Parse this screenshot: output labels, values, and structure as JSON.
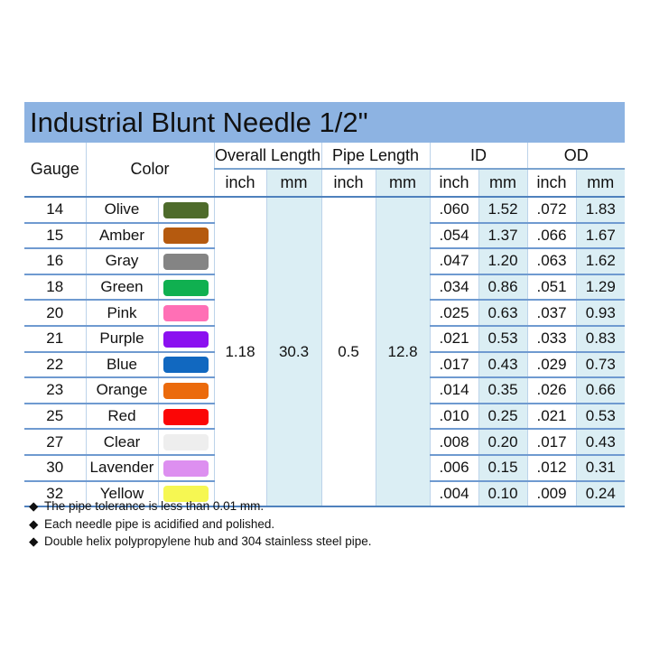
{
  "title": "Industrial Blunt Needle 1/2\"",
  "headers": {
    "gauge": "Gauge",
    "color": "Color",
    "overall_length": "Overall Length",
    "pipe_length": "Pipe Length",
    "id": "ID",
    "od": "OD",
    "inch": "inch",
    "mm": "mm"
  },
  "overall_length": {
    "inch": "1.18",
    "mm": "30.3"
  },
  "pipe_length": {
    "inch": "0.5",
    "mm": "12.8"
  },
  "rows": [
    {
      "gauge": "14",
      "color": "Olive",
      "hex": "#4e6b2b",
      "id_inch": ".060",
      "id_mm": "1.52",
      "od_inch": ".072",
      "od_mm": "1.83"
    },
    {
      "gauge": "15",
      "color": "Amber",
      "hex": "#b55a0f",
      "id_inch": ".054",
      "id_mm": "1.37",
      "od_inch": ".066",
      "od_mm": "1.67"
    },
    {
      "gauge": "16",
      "color": "Gray",
      "hex": "#848484",
      "id_inch": ".047",
      "id_mm": "1.20",
      "od_inch": ".063",
      "od_mm": "1.62"
    },
    {
      "gauge": "18",
      "color": "Green",
      "hex": "#10b050",
      "id_inch": ".034",
      "id_mm": "0.86",
      "od_inch": ".051",
      "od_mm": "1.29"
    },
    {
      "gauge": "20",
      "color": "Pink",
      "hex": "#ff6fb5",
      "id_inch": ".025",
      "id_mm": "0.63",
      "od_inch": ".037",
      "od_mm": "0.93"
    },
    {
      "gauge": "21",
      "color": "Purple",
      "hex": "#8b10f0",
      "id_inch": ".021",
      "id_mm": "0.53",
      "od_inch": ".033",
      "od_mm": "0.83"
    },
    {
      "gauge": "22",
      "color": "Blue",
      "hex": "#1168c0",
      "id_inch": ".017",
      "id_mm": "0.43",
      "od_inch": ".029",
      "od_mm": "0.73"
    },
    {
      "gauge": "23",
      "color": "Orange",
      "hex": "#eb6a0c",
      "id_inch": ".014",
      "id_mm": "0.35",
      "od_inch": ".026",
      "od_mm": "0.66"
    },
    {
      "gauge": "25",
      "color": "Red",
      "hex": "#fb0606",
      "id_inch": ".010",
      "id_mm": "0.25",
      "od_inch": ".021",
      "od_mm": "0.53"
    },
    {
      "gauge": "27",
      "color": "Clear",
      "hex": "#eeeeee",
      "id_inch": ".008",
      "id_mm": "0.20",
      "od_inch": ".017",
      "od_mm": "0.43"
    },
    {
      "gauge": "30",
      "color": "Lavender",
      "hex": "#dd8ff0",
      "id_inch": ".006",
      "id_mm": "0.15",
      "od_inch": ".012",
      "od_mm": "0.31"
    },
    {
      "gauge": "32",
      "color": "Yellow",
      "hex": "#f6f752",
      "id_inch": ".004",
      "id_mm": "0.10",
      "od_inch": ".009",
      "od_mm": "0.24"
    }
  ],
  "notes": [
    "The pipe tolerance is less than 0.01 mm.",
    "Each needle pipe is acidified and polished.",
    "Double helix polypropylene hub and 304 stainless steel pipe."
  ],
  "bullet": "◆"
}
